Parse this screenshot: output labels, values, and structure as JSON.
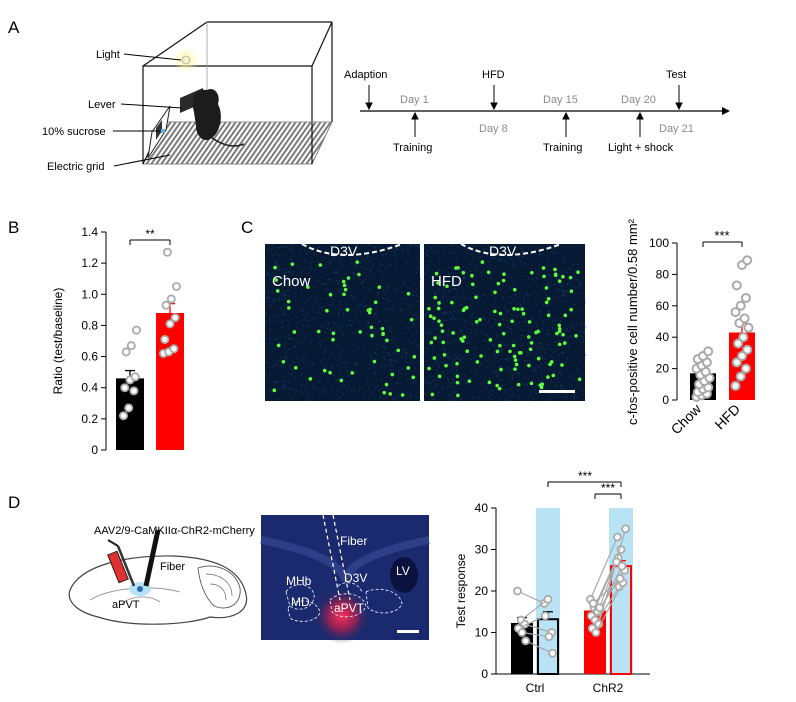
{
  "panel_labels": {
    "a": "A",
    "b": "B",
    "c": "C",
    "d": "D"
  },
  "panelA": {
    "apparatus": {
      "light": "Light",
      "lever": "Lever",
      "sucrose": "10% sucrose",
      "grid": "Electric grid"
    },
    "timeline": {
      "top": [
        "Adaption",
        "Day 1",
        "HFD",
        "Day 15",
        "Day 20",
        "Test"
      ],
      "bottom": [
        "Day 8",
        "Day 21"
      ],
      "events": [
        "Training",
        "Training",
        "Light + shock"
      ]
    }
  },
  "panelC_images": {
    "scale_text_left": "D3V",
    "scale_text_right": "D3V",
    "left_label": "Chow",
    "right_label": "HFD"
  },
  "panelD_schematic": {
    "virus": "AAV2/9-CaMKIIα-ChR2-mCherry",
    "fiber": "Fiber",
    "apvt": "aPVT",
    "histology": {
      "fiber": "Fiber",
      "mhb": "MHb",
      "md": "MD",
      "d3v": "D3V",
      "apvt": "aPVT",
      "lv": "LV"
    }
  },
  "colors": {
    "chow": "#000000",
    "hfd": "#ff0000",
    "light": "#b7e3f5",
    "dot_grey": "#aaaaaa"
  },
  "chart_data": [
    {
      "type": "bar",
      "panel": "B",
      "categories": [
        "Chow",
        "HFD"
      ],
      "values": [
        0.46,
        0.88
      ],
      "errors": [
        0.05,
        0.06
      ],
      "ylabel": "Ratio (test/baseline)",
      "ylim": [
        0,
        1.4
      ],
      "yticks": [
        "0",
        "0.2",
        "0.4",
        "0.6",
        "0.8",
        "1.0",
        "1.2",
        "1.4"
      ],
      "significance": "**",
      "points": [
        [
          0.22,
          0.27,
          0.38,
          0.4,
          0.45,
          0.47,
          0.63,
          0.67,
          0.77
        ],
        [
          0.62,
          0.63,
          0.65,
          0.71,
          0.81,
          0.85,
          0.93,
          0.97,
          1.05,
          1.27
        ]
      ]
    },
    {
      "type": "bar",
      "panel": "C",
      "categories": [
        "Chow",
        "HFD"
      ],
      "values": [
        17,
        43
      ],
      "errors": [
        3,
        6
      ],
      "ylabel": "c-fos-positive cell number/0.58 mm²",
      "ylim": [
        0,
        100
      ],
      "yticks": [
        "0",
        "20",
        "40",
        "60",
        "80",
        "100"
      ],
      "significance": "***",
      "points": [
        [
          2,
          3,
          4,
          5,
          7,
          8,
          10,
          12,
          14,
          16,
          18,
          20,
          22,
          24,
          26,
          28,
          31
        ],
        [
          9,
          15,
          20,
          24,
          28,
          32,
          36,
          40,
          46,
          49,
          52,
          56,
          60,
          65,
          73,
          86,
          89
        ]
      ]
    },
    {
      "type": "bar",
      "panel": "D",
      "categories": [
        "Ctrl",
        "ChR2"
      ],
      "series": [
        {
          "values": [
            12.3,
            15.3
          ],
          "errors": [
            1.3,
            1.4
          ],
          "fill": "filled"
        },
        {
          "values": [
            13.2,
            26.0
          ],
          "errors": [
            1.8,
            1.3
          ],
          "fill": "outline"
        }
      ],
      "ylabel": "Test response",
      "ylim": [
        0,
        40
      ],
      "yticks": [
        "0",
        "10",
        "20",
        "30",
        "40"
      ],
      "significance": [
        "***",
        "***"
      ],
      "pairs": [
        [
          [
            20,
            17
          ],
          [
            13,
            18
          ],
          [
            12,
            10
          ],
          [
            11,
            14
          ],
          [
            10,
            9
          ],
          [
            8,
            5
          ]
        ],
        [
          [
            18,
            33
          ],
          [
            16,
            30
          ],
          [
            15,
            25
          ],
          [
            14,
            28
          ],
          [
            13,
            26
          ],
          [
            12,
            35
          ],
          [
            11,
            21
          ],
          [
            10,
            22
          ],
          [
            16,
            27
          ],
          [
            17,
            23
          ]
        ]
      ]
    }
  ]
}
